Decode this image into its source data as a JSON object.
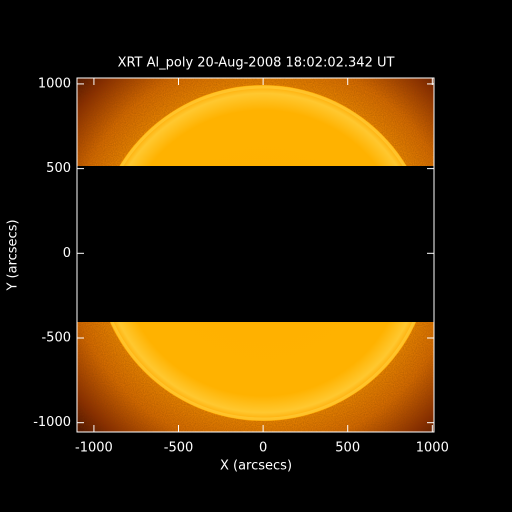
{
  "chart_data": {
    "type": "image",
    "title": "XRT Al_poly 20-Aug-2008 18:02:02.342 UT",
    "x_label": "X (arcsecs)",
    "y_label": "Y (arcsecs)",
    "xlim": [
      -1100,
      1010
    ],
    "ylim": [
      -1055,
      1035
    ],
    "xticks": [
      -1000,
      -500,
      0,
      500,
      1000
    ],
    "yticks": [
      -1000,
      -500,
      0,
      500,
      1000
    ]
  }
}
